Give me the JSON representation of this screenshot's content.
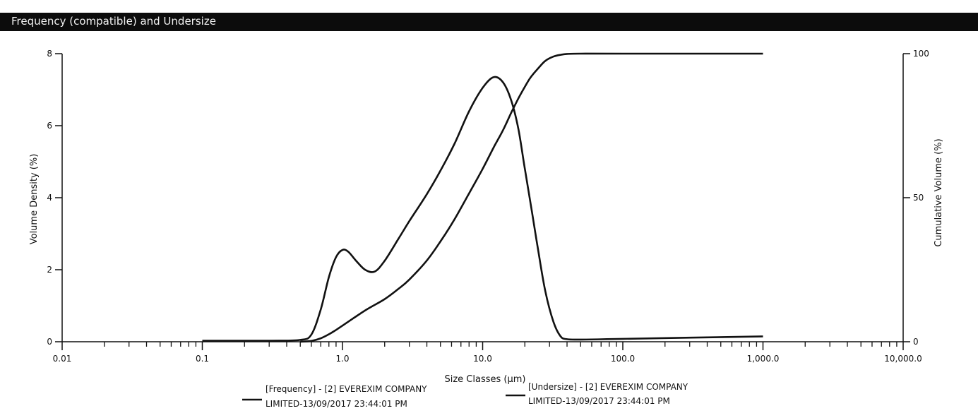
{
  "panel": {
    "title": "Frequency (compatible) and Undersize"
  },
  "chart_data": {
    "type": "line",
    "xlabel": "Size Classes (µm)",
    "ylabel_left": "Volume Density (%)",
    "ylabel_right": "Cumulative Volume (%)",
    "x_scale": "log",
    "xlim": [
      0.01,
      10000
    ],
    "ylim_left": [
      0,
      8
    ],
    "ylim_right": [
      0,
      100
    ],
    "x_ticks": [
      {
        "value": 0.01,
        "label": "0.01"
      },
      {
        "value": 0.1,
        "label": "0.1"
      },
      {
        "value": 1,
        "label": "1.0"
      },
      {
        "value": 10,
        "label": "10.0"
      },
      {
        "value": 100,
        "label": "100.0"
      },
      {
        "value": 1000,
        "label": "1,000.0"
      },
      {
        "value": 10000,
        "label": "10,000.0"
      }
    ],
    "y_ticks_left": [
      {
        "value": 0,
        "label": "0"
      },
      {
        "value": 2,
        "label": "2"
      },
      {
        "value": 4,
        "label": "4"
      },
      {
        "value": 6,
        "label": "6"
      },
      {
        "value": 8,
        "label": "8"
      }
    ],
    "y_ticks_right": [
      {
        "value": 0,
        "label": "0"
      },
      {
        "value": 50,
        "label": "50"
      },
      {
        "value": 100,
        "label": "100"
      }
    ],
    "grid": false,
    "legend_position": "bottom",
    "series": [
      {
        "name": "[Frequency] - [2] EVEREXIM COMPANY LIMITED-13/09/2017 23:44:01 PM",
        "legend_lines": [
          "[Frequency] - [2] EVEREXIM COMPANY",
          "LIMITED-13/09/2017 23:44:01 PM"
        ],
        "axis": "left",
        "color": "#111111",
        "x": [
          0.1,
          0.3,
          0.5,
          0.6,
          0.7,
          0.8,
          0.9,
          1.0,
          1.1,
          1.25,
          1.45,
          1.7,
          2.0,
          2.5,
          3.0,
          4.0,
          5.0,
          6.3,
          8.0,
          10.0,
          12.0,
          14.0,
          16.0,
          18.0,
          20.0,
          22.5,
          25.0,
          28.0,
          32.0,
          36.0,
          40.0,
          50.0,
          100.0,
          1000.0
        ],
        "values": [
          0.03,
          0.03,
          0.05,
          0.2,
          0.9,
          1.8,
          2.35,
          2.55,
          2.5,
          2.25,
          2.0,
          1.95,
          2.25,
          2.85,
          3.35,
          4.1,
          4.75,
          5.5,
          6.4,
          7.05,
          7.35,
          7.2,
          6.7,
          5.9,
          4.8,
          3.6,
          2.5,
          1.4,
          0.55,
          0.15,
          0.07,
          0.06,
          0.08,
          0.15
        ]
      },
      {
        "name": "[Undersize] - [2] EVEREXIM COMPANY LIMITED-13/09/2017 23:44:01 PM",
        "legend_lines": [
          "[Undersize] - [2] EVEREXIM COMPANY",
          "LIMITED-13/09/2017 23:44:01 PM"
        ],
        "axis": "right",
        "color": "#111111",
        "x": [
          0.5,
          0.6,
          0.7,
          0.8,
          0.9,
          1.0,
          1.2,
          1.5,
          2.0,
          2.5,
          3.0,
          4.0,
          5.0,
          6.3,
          8.0,
          10.0,
          12.0,
          14.0,
          16.0,
          18.0,
          20.0,
          22.0,
          25.0,
          28.0,
          32.0,
          36.0,
          40.0,
          50.0,
          100.0,
          1000.0
        ],
        "values": [
          0,
          0.3,
          1.2,
          2.6,
          4.1,
          5.6,
          8.2,
          11.3,
          14.8,
          18.3,
          21.6,
          28.2,
          34.8,
          42.5,
          51.5,
          60.0,
          67.5,
          73.5,
          79.5,
          84.5,
          88.5,
          91.8,
          95.0,
          97.5,
          99.0,
          99.6,
          99.9,
          100,
          100,
          100
        ]
      }
    ]
  }
}
